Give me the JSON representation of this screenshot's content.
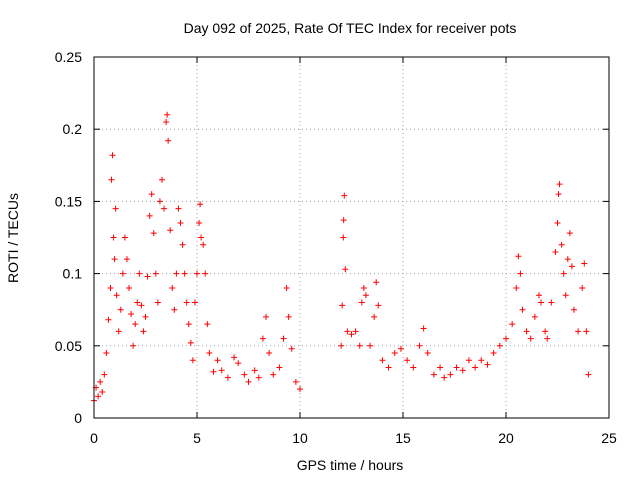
{
  "chart_data": {
    "type": "scatter",
    "title": "Day 092 of 2025, Rate Of TEC Index for receiver pots",
    "xlabel": "GPS time / hours",
    "ylabel": "ROTI / TECUs",
    "xlim": [
      0,
      25
    ],
    "ylim": [
      0,
      0.25
    ],
    "x_ticks": [
      0,
      5,
      10,
      15,
      20,
      25
    ],
    "x_tick_labels": [
      "0",
      "5",
      "10",
      "15",
      "20",
      "25"
    ],
    "y_ticks": [
      0,
      0.05,
      0.1,
      0.15,
      0.2,
      0.25
    ],
    "y_tick_labels": [
      "0",
      "0.05",
      "0.1",
      "0.15",
      "0.2",
      "0.25"
    ],
    "grid": true,
    "legend": "none",
    "marker": "plus",
    "color": "#ff0000",
    "series": [
      {
        "points": [
          [
            0.0,
            0.012
          ],
          [
            0.1,
            0.021
          ],
          [
            0.2,
            0.015
          ],
          [
            0.3,
            0.025
          ],
          [
            0.4,
            0.018
          ],
          [
            0.5,
            0.03
          ],
          [
            0.6,
            0.045
          ],
          [
            0.7,
            0.068
          ],
          [
            0.8,
            0.09
          ],
          [
            0.85,
            0.165
          ],
          [
            0.9,
            0.182
          ],
          [
            0.95,
            0.125
          ],
          [
            1.0,
            0.11
          ],
          [
            1.05,
            0.145
          ],
          [
            1.1,
            0.085
          ],
          [
            1.2,
            0.06
          ],
          [
            1.3,
            0.075
          ],
          [
            1.4,
            0.1
          ],
          [
            1.5,
            0.125
          ],
          [
            1.6,
            0.11
          ],
          [
            1.7,
            0.09
          ],
          [
            1.8,
            0.072
          ],
          [
            1.9,
            0.05
          ],
          [
            2.0,
            0.065
          ],
          [
            2.1,
            0.08
          ],
          [
            2.2,
            0.1
          ],
          [
            2.3,
            0.078
          ],
          [
            2.4,
            0.06
          ],
          [
            2.5,
            0.07
          ],
          [
            2.6,
            0.098
          ],
          [
            2.7,
            0.14
          ],
          [
            2.8,
            0.155
          ],
          [
            2.9,
            0.128
          ],
          [
            3.0,
            0.1
          ],
          [
            3.1,
            0.08
          ],
          [
            3.2,
            0.15
          ],
          [
            3.3,
            0.165
          ],
          [
            3.4,
            0.145
          ],
          [
            3.5,
            0.205
          ],
          [
            3.55,
            0.21
          ],
          [
            3.6,
            0.192
          ],
          [
            3.7,
            0.13
          ],
          [
            3.8,
            0.09
          ],
          [
            3.9,
            0.075
          ],
          [
            4.0,
            0.1
          ],
          [
            4.1,
            0.145
          ],
          [
            4.2,
            0.135
          ],
          [
            4.3,
            0.12
          ],
          [
            4.4,
            0.1
          ],
          [
            4.5,
            0.08
          ],
          [
            4.6,
            0.065
          ],
          [
            4.7,
            0.052
          ],
          [
            4.8,
            0.04
          ],
          [
            4.9,
            0.08
          ],
          [
            5.0,
            0.1
          ],
          [
            5.1,
            0.135
          ],
          [
            5.15,
            0.148
          ],
          [
            5.2,
            0.125
          ],
          [
            5.3,
            0.12
          ],
          [
            5.4,
            0.1
          ],
          [
            5.5,
            0.065
          ],
          [
            5.6,
            0.045
          ],
          [
            5.8,
            0.032
          ],
          [
            6.0,
            0.04
          ],
          [
            6.2,
            0.033
          ],
          [
            6.5,
            0.028
          ],
          [
            6.8,
            0.042
          ],
          [
            7.0,
            0.038
          ],
          [
            7.3,
            0.03
          ],
          [
            7.5,
            0.025
          ],
          [
            7.8,
            0.033
          ],
          [
            8.0,
            0.028
          ],
          [
            8.2,
            0.055
          ],
          [
            8.35,
            0.07
          ],
          [
            8.5,
            0.045
          ],
          [
            8.7,
            0.03
          ],
          [
            9.0,
            0.035
          ],
          [
            9.2,
            0.055
          ],
          [
            9.35,
            0.09
          ],
          [
            9.45,
            0.07
          ],
          [
            9.6,
            0.048
          ],
          [
            9.8,
            0.025
          ],
          [
            10.0,
            0.02
          ],
          [
            12.0,
            0.05
          ],
          [
            12.05,
            0.078
          ],
          [
            12.1,
            0.125
          ],
          [
            12.12,
            0.137
          ],
          [
            12.15,
            0.154
          ],
          [
            12.2,
            0.103
          ],
          [
            12.3,
            0.06
          ],
          [
            12.5,
            0.058
          ],
          [
            12.7,
            0.06
          ],
          [
            12.9,
            0.05
          ],
          [
            13.0,
            0.08
          ],
          [
            13.1,
            0.09
          ],
          [
            13.2,
            0.085
          ],
          [
            13.4,
            0.05
          ],
          [
            13.6,
            0.07
          ],
          [
            13.7,
            0.094
          ],
          [
            13.8,
            0.078
          ],
          [
            14.0,
            0.04
          ],
          [
            14.3,
            0.035
          ],
          [
            14.6,
            0.045
          ],
          [
            14.9,
            0.048
          ],
          [
            15.2,
            0.04
          ],
          [
            15.5,
            0.035
          ],
          [
            15.8,
            0.05
          ],
          [
            16.0,
            0.062
          ],
          [
            16.2,
            0.045
          ],
          [
            16.5,
            0.03
          ],
          [
            16.8,
            0.035
          ],
          [
            17.0,
            0.028
          ],
          [
            17.3,
            0.03
          ],
          [
            17.6,
            0.035
          ],
          [
            17.9,
            0.033
          ],
          [
            18.2,
            0.04
          ],
          [
            18.5,
            0.035
          ],
          [
            18.8,
            0.04
          ],
          [
            19.1,
            0.037
          ],
          [
            19.4,
            0.045
          ],
          [
            19.7,
            0.05
          ],
          [
            20.0,
            0.055
          ],
          [
            20.3,
            0.065
          ],
          [
            20.5,
            0.09
          ],
          [
            20.6,
            0.112
          ],
          [
            20.7,
            0.1
          ],
          [
            20.8,
            0.075
          ],
          [
            21.0,
            0.06
          ],
          [
            21.2,
            0.055
          ],
          [
            21.4,
            0.07
          ],
          [
            21.6,
            0.085
          ],
          [
            21.7,
            0.08
          ],
          [
            21.9,
            0.06
          ],
          [
            22.0,
            0.055
          ],
          [
            22.2,
            0.08
          ],
          [
            22.4,
            0.115
          ],
          [
            22.5,
            0.135
          ],
          [
            22.55,
            0.155
          ],
          [
            22.6,
            0.162
          ],
          [
            22.7,
            0.12
          ],
          [
            22.8,
            0.1
          ],
          [
            22.9,
            0.085
          ],
          [
            23.0,
            0.11
          ],
          [
            23.1,
            0.128
          ],
          [
            23.2,
            0.105
          ],
          [
            23.3,
            0.075
          ],
          [
            23.5,
            0.06
          ],
          [
            23.7,
            0.09
          ],
          [
            23.8,
            0.107
          ],
          [
            23.9,
            0.06
          ],
          [
            24.0,
            0.03
          ]
        ]
      }
    ]
  }
}
